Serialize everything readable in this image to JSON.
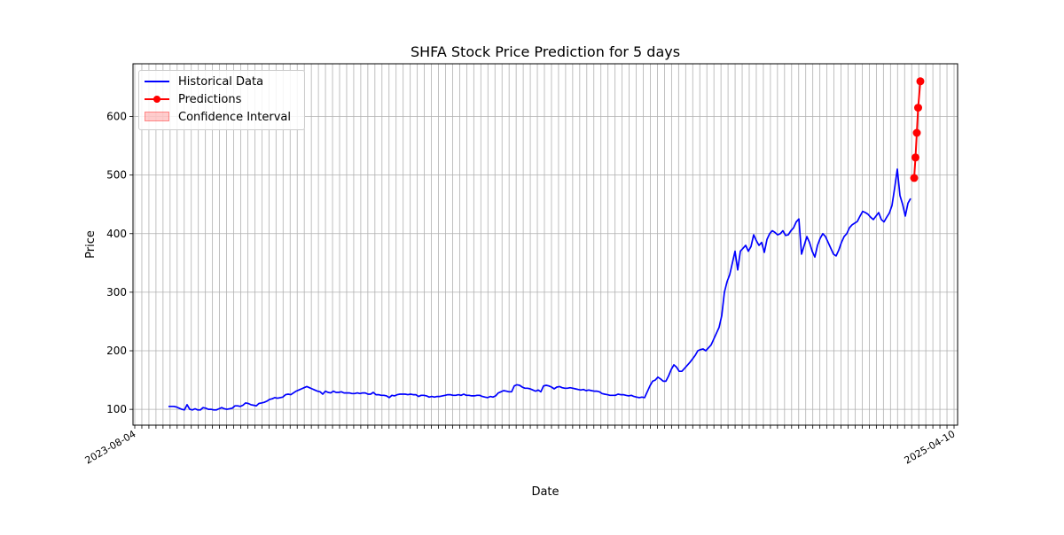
{
  "chart_data": {
    "type": "line",
    "title": "SHFA Stock Price Prediction for 5 days",
    "xlabel": "Date",
    "ylabel": "Price",
    "ylim": [
      73,
      690
    ],
    "yticks": [
      100,
      200,
      300,
      400,
      500,
      600
    ],
    "grid": true,
    "legend_position": "upper-left",
    "legend": [
      "Historical Data",
      "Predictions",
      "Confidence Interval"
    ],
    "xtick_first_label": "2023-08-04",
    "xtick_last_label": "2025-04-10",
    "xtick_count": 117,
    "series": [
      {
        "name": "Historical Data",
        "color": "#0000ff",
        "values": [
          105,
          105,
          105,
          104,
          102,
          100,
          99,
          108,
          100,
          99,
          101,
          99,
          99,
          103,
          102,
          100,
          100,
          99,
          99,
          101,
          103,
          101,
          100,
          101,
          102,
          106,
          106,
          105,
          107,
          111,
          110,
          108,
          107,
          106,
          110,
          111,
          112,
          114,
          117,
          118,
          120,
          119,
          120,
          121,
          125,
          126,
          125,
          128,
          131,
          133,
          135,
          137,
          139,
          137,
          135,
          133,
          131,
          130,
          126,
          131,
          129,
          128,
          131,
          129,
          129,
          130,
          128,
          128,
          128,
          127,
          127,
          128,
          127,
          128,
          128,
          126,
          126,
          129,
          125,
          125,
          124,
          124,
          123,
          120,
          124,
          123,
          125,
          126,
          126,
          126,
          125,
          126,
          125,
          125,
          122,
          124,
          124,
          123,
          121,
          122,
          121,
          122,
          122,
          123,
          124,
          125,
          125,
          124,
          124,
          125,
          124,
          126,
          124,
          124,
          123,
          123,
          124,
          124,
          122,
          121,
          120,
          122,
          121,
          123,
          128,
          130,
          132,
          131,
          130,
          130,
          140,
          142,
          141,
          138,
          136,
          136,
          135,
          133,
          131,
          133,
          130,
          140,
          141,
          140,
          138,
          135,
          138,
          139,
          137,
          136,
          136,
          137,
          136,
          135,
          134,
          133,
          134,
          132,
          133,
          132,
          131,
          131,
          130,
          127,
          126,
          125,
          124,
          124,
          124,
          126,
          125,
          125,
          124,
          123,
          124,
          122,
          121,
          120,
          121,
          120,
          130,
          140,
          148,
          150,
          155,
          152,
          148,
          148,
          157,
          168,
          176,
          172,
          165,
          165,
          170,
          175,
          180,
          186,
          192,
          200,
          202,
          203,
          200,
          205,
          210,
          220,
          230,
          240,
          260,
          300,
          318,
          330,
          350,
          370,
          338,
          370,
          375,
          380,
          370,
          378,
          398,
          388,
          380,
          385,
          368,
          390,
          400,
          405,
          402,
          398,
          400,
          405,
          397,
          398,
          405,
          410,
          420,
          425,
          365,
          380,
          395,
          385,
          370,
          360,
          380,
          392,
          400,
          395,
          385,
          375,
          365,
          362,
          372,
          385,
          395,
          400,
          410,
          415,
          418,
          421,
          430,
          438,
          436,
          433,
          428,
          424,
          430,
          436,
          424,
          420,
          428,
          435,
          448,
          478,
          510,
          465,
          450,
          430,
          452,
          460
        ]
      },
      {
        "name": "Predictions",
        "color": "#ff0000",
        "values": [
          495,
          530,
          572,
          615,
          660
        ]
      }
    ]
  }
}
